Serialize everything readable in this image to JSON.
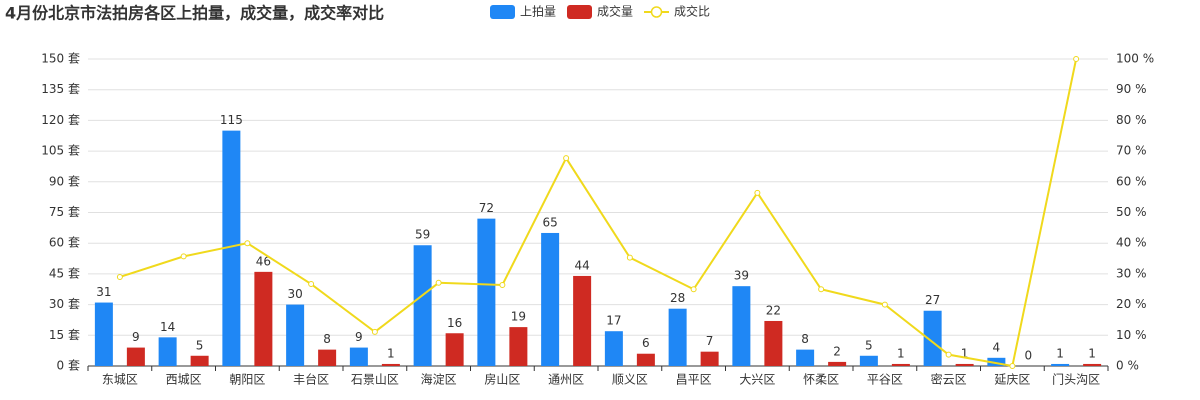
{
  "chart_data": {
    "type": "bar",
    "title": "4月份北京市法拍房各区上拍量，成交量，成交率对比",
    "categories": [
      "东城区",
      "西城区",
      "朝阳区",
      "丰台区",
      "石景山区",
      "海淀区",
      "房山区",
      "通州区",
      "顺义区",
      "昌平区",
      "大兴区",
      "怀柔区",
      "平谷区",
      "密云区",
      "延庆区",
      "门头沟区"
    ],
    "series": [
      {
        "name": "上拍量",
        "type": "bar",
        "color": "#1f87f5",
        "values": [
          31,
          14,
          115,
          30,
          9,
          59,
          72,
          65,
          17,
          28,
          39,
          8,
          5,
          27,
          4,
          1
        ]
      },
      {
        "name": "成交量",
        "type": "bar",
        "color": "#cf2a22",
        "values": [
          9,
          5,
          46,
          8,
          1,
          16,
          19,
          44,
          6,
          7,
          22,
          2,
          1,
          1,
          0,
          1
        ]
      },
      {
        "name": "成交比",
        "type": "line",
        "axis": "y2",
        "color": "#f0d91c",
        "values": [
          29.0,
          35.7,
          40.0,
          26.7,
          11.1,
          27.1,
          26.4,
          67.7,
          35.3,
          25.0,
          56.4,
          25.0,
          20.0,
          3.7,
          0,
          100
        ]
      }
    ],
    "ylim": [
      0,
      150
    ],
    "yticks": [
      {
        "value": 0,
        "label": "0 套"
      },
      {
        "value": 15,
        "label": "15 套"
      },
      {
        "value": 30,
        "label": "30 套"
      },
      {
        "value": 45,
        "label": "45 套"
      },
      {
        "value": 60,
        "label": "60 套"
      },
      {
        "value": 75,
        "label": "75 套"
      },
      {
        "value": 90,
        "label": "90 套"
      },
      {
        "value": 105,
        "label": "105 套"
      },
      {
        "value": 120,
        "label": "120 套"
      },
      {
        "value": 135,
        "label": "135 套"
      },
      {
        "value": 150,
        "label": "150 套"
      }
    ],
    "y2lim": [
      0,
      100
    ],
    "y2ticks": [
      {
        "value": 0,
        "label": "0 %"
      },
      {
        "value": 10,
        "label": "10 %"
      },
      {
        "value": 20,
        "label": "20 %"
      },
      {
        "value": 30,
        "label": "30 %"
      },
      {
        "value": 40,
        "label": "40 %"
      },
      {
        "value": 50,
        "label": "50 %"
      },
      {
        "value": 60,
        "label": "60 %"
      },
      {
        "value": 70,
        "label": "70 %"
      },
      {
        "value": 80,
        "label": "80 %"
      },
      {
        "value": 90,
        "label": "90 %"
      },
      {
        "value": 100,
        "label": "100 %"
      }
    ],
    "grid": true,
    "data_labels": true
  }
}
